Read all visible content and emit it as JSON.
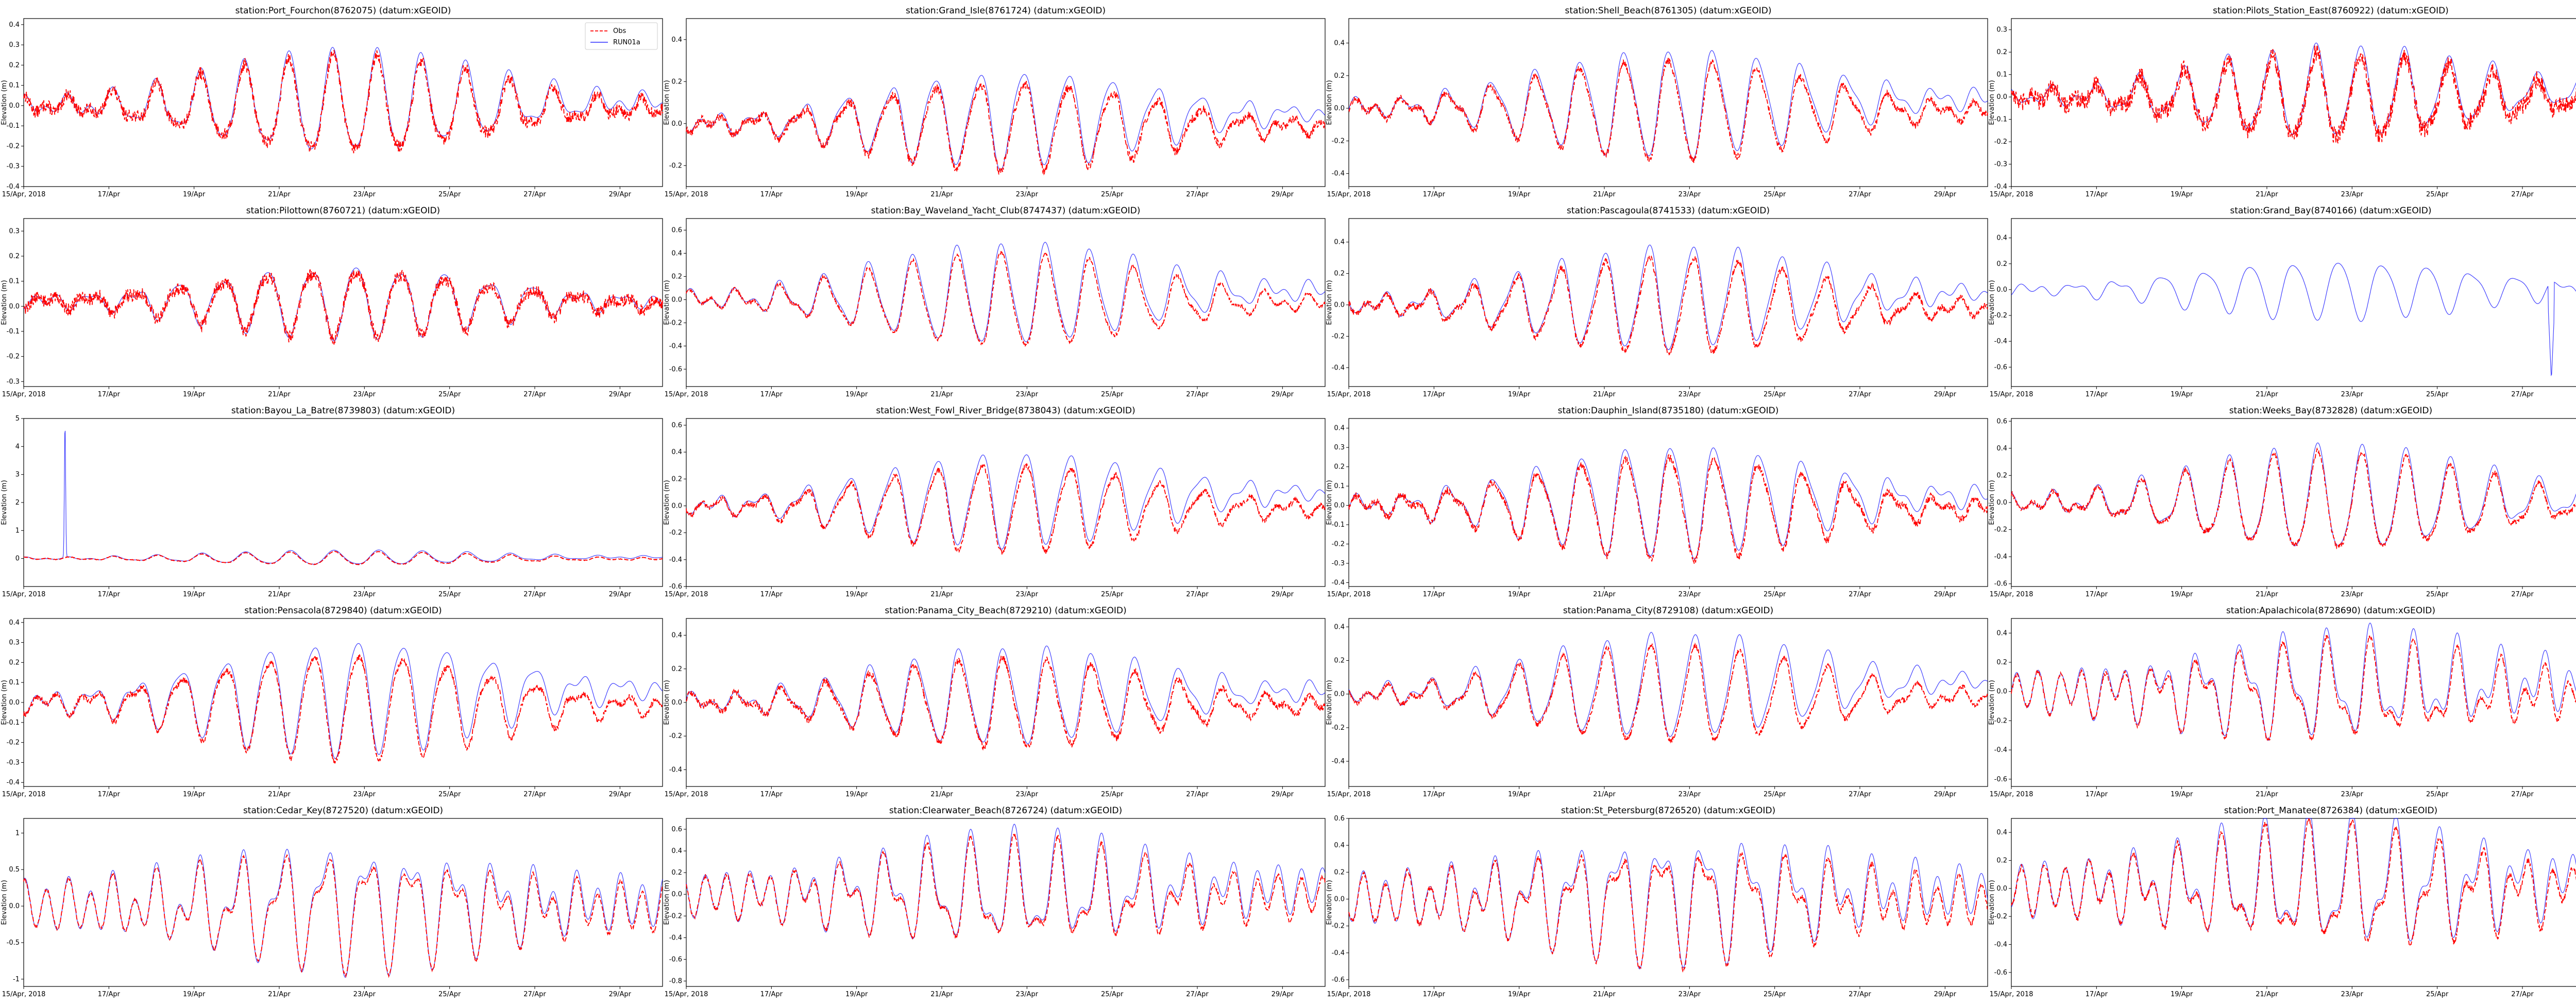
{
  "legend": {
    "obs": "Obs",
    "model": "RUN01a"
  },
  "colors": {
    "obs": "#ff0000",
    "model": "#0000ff"
  },
  "chart_data": {
    "type": "line",
    "ylabel": "Elevation (m)",
    "x_start_date": "2018-04-15",
    "x_end_date": "2018-04-30",
    "xtick_labels": [
      "15/Apr, 2018",
      "17/Apr",
      "19/Apr",
      "21/Apr",
      "23/Apr",
      "25/Apr",
      "27/Apr",
      "29/Apr"
    ],
    "series_names": [
      "Obs",
      "RUN01a"
    ],
    "panels": [
      {
        "title": "station:Port_Fourchon(8762075) (datum:xGEOID)",
        "ylim": [
          -0.4,
          0.43
        ],
        "yticks": [
          -0.4,
          -0.3,
          -0.2,
          -0.1,
          0.0,
          0.1,
          0.2,
          0.3,
          0.4
        ],
        "mean": 0.0,
        "amp": 0.25,
        "modelOffset": 0.02,
        "noise": 0.03,
        "legend": true
      },
      {
        "title": "station:Grand_Isle(8761724) (datum:xGEOID)",
        "ylim": [
          -0.3,
          0.5
        ],
        "yticks": [
          -0.2,
          0.0,
          0.2,
          0.4
        ],
        "mean": 0.0,
        "amp": 0.22,
        "modelOffset": 0.05,
        "noise": 0.02
      },
      {
        "title": "station:Shell_Beach(8761305) (datum:xGEOID)",
        "ylim": [
          -0.48,
          0.55
        ],
        "yticks": [
          -0.4,
          -0.2,
          0.0,
          0.2,
          0.4
        ],
        "mean": 0.0,
        "amp": 0.32,
        "modelOffset": 0.06,
        "noise": 0.02
      },
      {
        "title": "station:Pilots_Station_East(8760922) (datum:xGEOID)",
        "ylim": [
          -0.4,
          0.35
        ],
        "yticks": [
          -0.4,
          -0.3,
          -0.2,
          -0.1,
          0.0,
          0.1,
          0.2,
          0.3
        ],
        "mean": 0.0,
        "amp": 0.2,
        "modelOffset": 0.03,
        "noise": 0.04
      },
      {
        "title": "station:Pilottown(8760721) (datum:xGEOID)",
        "ylim": [
          -0.32,
          0.35
        ],
        "yticks": [
          -0.3,
          -0.2,
          -0.1,
          0.0,
          0.1,
          0.2,
          0.3
        ],
        "mean": 0.02,
        "amp": 0.14,
        "modelOffset": 0.0,
        "noise": 0.025
      },
      {
        "title": "station:Bay_Waveland_Yacht_Club(8747437) (datum:xGEOID)",
        "ylim": [
          -0.75,
          0.7
        ],
        "yticks": [
          -0.6,
          -0.4,
          -0.2,
          0.0,
          0.2,
          0.4,
          0.6
        ],
        "mean": 0.0,
        "amp": 0.42,
        "modelOffset": 0.08,
        "noise": 0.015
      },
      {
        "title": "station:Pascagoula(8741533) (datum:xGEOID)",
        "ylim": [
          -0.52,
          0.55
        ],
        "yticks": [
          -0.4,
          -0.2,
          0.0,
          0.2,
          0.4
        ],
        "mean": 0.0,
        "amp": 0.32,
        "modelOffset": 0.08,
        "noise": 0.02
      },
      {
        "title": "station:Grand_Bay(8740166) (datum:xGEOID)",
        "ylim": [
          -0.75,
          0.55
        ],
        "yticks": [
          -0.6,
          -0.4,
          -0.2,
          0.0,
          0.2,
          0.4
        ],
        "mean": 0.0,
        "amp": 0.22,
        "modelOffset": 0.0,
        "noise": 0.0,
        "noObs": true
      },
      {
        "title": "station:Bayou_La_Batre(8739803) (datum:xGEOID)",
        "ylim": [
          -1.0,
          5.0
        ],
        "yticks": [
          0,
          1,
          2,
          3,
          4,
          5
        ],
        "mean": 0.0,
        "amp": 0.25,
        "modelOffset": 0.05,
        "noise": 0.01,
        "spike": 4.8
      },
      {
        "title": "station:West_Fowl_River_Bridge(8738043) (datum:xGEOID)",
        "ylim": [
          -0.6,
          0.65
        ],
        "yticks": [
          -0.6,
          -0.4,
          -0.2,
          0.0,
          0.2,
          0.4,
          0.6
        ],
        "mean": 0.0,
        "amp": 0.34,
        "modelOffset": 0.1,
        "noise": 0.02
      },
      {
        "title": "station:Dauphin_Island(8735180) (datum:xGEOID)",
        "ylim": [
          -0.42,
          0.45
        ],
        "yticks": [
          -0.4,
          -0.3,
          -0.2,
          -0.1,
          0.0,
          0.1,
          0.2,
          0.3,
          0.4
        ],
        "mean": 0.0,
        "amp": 0.28,
        "modelOffset": 0.05,
        "noise": 0.02
      },
      {
        "title": "station:Weeks_Bay(8732828) (datum:xGEOID)",
        "ylim": [
          -0.62,
          0.62
        ],
        "yticks": [
          -0.6,
          -0.4,
          -0.2,
          0.0,
          0.2,
          0.4,
          0.6
        ],
        "mean": 0.0,
        "amp": 0.38,
        "modelOffset": 0.03,
        "noise": 0.02
      },
      {
        "title": "station:Pensacola(8729840) (datum:xGEOID)",
        "ylim": [
          -0.42,
          0.42
        ],
        "yticks": [
          -0.4,
          -0.3,
          -0.2,
          -0.1,
          0.0,
          0.1,
          0.2,
          0.3,
          0.4
        ],
        "mean": 0.0,
        "amp": 0.28,
        "modelOffset": 0.07,
        "noise": 0.015
      },
      {
        "title": "station:Panama_City_Beach(8729210) (datum:xGEOID)",
        "ylim": [
          -0.5,
          0.5
        ],
        "yticks": [
          -0.4,
          -0.2,
          0.0,
          0.2,
          0.4
        ],
        "mean": 0.0,
        "amp": 0.28,
        "modelOffset": 0.07,
        "noise": 0.02
      },
      {
        "title": "station:Panama_City(8729108) (datum:xGEOID)",
        "ylim": [
          -0.55,
          0.45
        ],
        "yticks": [
          -0.4,
          -0.2,
          0.0,
          0.2,
          0.4
        ],
        "mean": 0.0,
        "amp": 0.3,
        "modelOffset": 0.08,
        "noise": 0.015
      },
      {
        "title": "station:Apalachicola(8728690) (datum:xGEOID)",
        "ylim": [
          -0.65,
          0.5
        ],
        "yticks": [
          -0.6,
          -0.4,
          -0.2,
          0.0,
          0.2,
          0.4
        ],
        "mean": 0.0,
        "amp": 0.3,
        "modelOffset": 0.07,
        "noise": 0.015,
        "semidiurnal": true
      },
      {
        "title": "station:Cedar_Key(8727520) (datum:xGEOID)",
        "ylim": [
          -1.1,
          1.2
        ],
        "yticks": [
          -1.0,
          -0.5,
          0.0,
          0.5,
          1.0
        ],
        "mean": 0.0,
        "amp": 0.7,
        "modelOffset": 0.05,
        "noise": 0.02,
        "semidiurnal": true
      },
      {
        "title": "station:Clearwater_Beach(8726724) (datum:xGEOID)",
        "ylim": [
          -0.85,
          0.7
        ],
        "yticks": [
          -0.8,
          -0.6,
          -0.4,
          -0.2,
          0.0,
          0.2,
          0.4,
          0.6
        ],
        "mean": 0.0,
        "amp": 0.42,
        "modelOffset": 0.06,
        "noise": 0.02,
        "semidiurnal": true
      },
      {
        "title": "station:St_Petersburg(8726520) (datum:xGEOID)",
        "ylim": [
          -0.65,
          0.6
        ],
        "yticks": [
          -0.6,
          -0.4,
          -0.2,
          0.0,
          0.2,
          0.4,
          0.6
        ],
        "mean": 0.0,
        "amp": 0.38,
        "modelOffset": 0.06,
        "noise": 0.02,
        "semidiurnal": true
      },
      {
        "title": "station:Port_Manatee(8726384) (datum:xGEOID)",
        "ylim": [
          -0.7,
          0.5
        ],
        "yticks": [
          -0.6,
          -0.4,
          -0.2,
          0.0,
          0.2,
          0.4
        ],
        "mean": 0.0,
        "amp": 0.38,
        "modelOffset": 0.06,
        "noise": 0.02,
        "semidiurnal": true
      }
    ]
  }
}
